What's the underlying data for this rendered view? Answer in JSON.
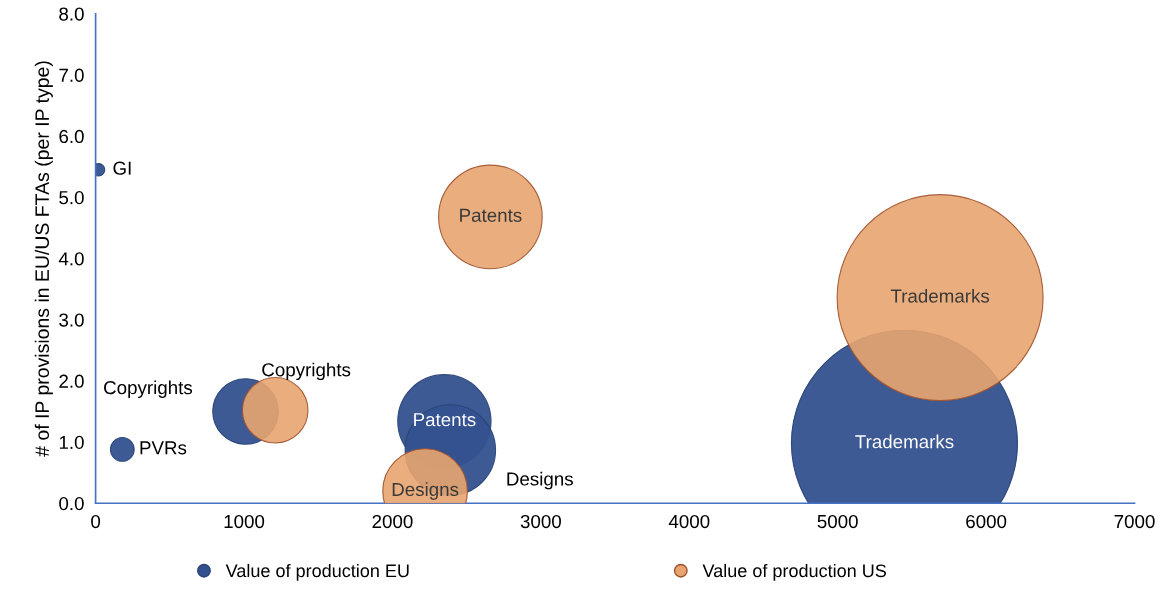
{
  "chart_data": {
    "type": "bubble",
    "ylabel": "# of IP provisions in EU/US FTAs (per IP type)",
    "xlim": [
      0,
      7000
    ],
    "xticks": [
      0,
      1000,
      2000,
      3000,
      4000,
      5000,
      6000,
      7000
    ],
    "ylim": [
      0,
      8
    ],
    "yticks": [
      {
        "value": 0,
        "label": "0.0"
      },
      {
        "value": 1,
        "label": "1.0"
      },
      {
        "value": 2,
        "label": "2.0"
      },
      {
        "value": 3,
        "label": "3.0"
      },
      {
        "value": 4,
        "label": "4.0"
      },
      {
        "value": 5,
        "label": "5.0"
      },
      {
        "value": 6,
        "label": "6.0"
      },
      {
        "value": 7,
        "label": "7.0"
      },
      {
        "value": 8,
        "label": "8.0"
      }
    ],
    "series": [
      {
        "name": "Value of production EU",
        "color": "#34518f",
        "x": [
          20,
          180,
          1010,
          2350,
          2390,
          5450
        ],
        "values": [
          5.45,
          0.88,
          1.5,
          1.34,
          0.87,
          0.98
        ],
        "sizes": [
          0.003,
          0.011,
          0.084,
          0.17,
          0.16,
          1
        ],
        "value_labels": [
          "GI",
          "PVRs",
          "Copyrights",
          "Patents",
          "Designs",
          "Trademarks"
        ]
      },
      {
        "name": "Value of production US",
        "color": "#e8a46f",
        "x": [
          1210,
          2660,
          2220,
          5690
        ],
        "values": [
          1.52,
          4.68,
          0.2,
          3.36
        ],
        "sizes": [
          0.084,
          0.21,
          0.14,
          0.83
        ],
        "value_labels": [
          "Copyrights",
          "Patents",
          "Designs",
          "Trademarks"
        ]
      }
    ],
    "legend": "bottom",
    "grid": false
  }
}
